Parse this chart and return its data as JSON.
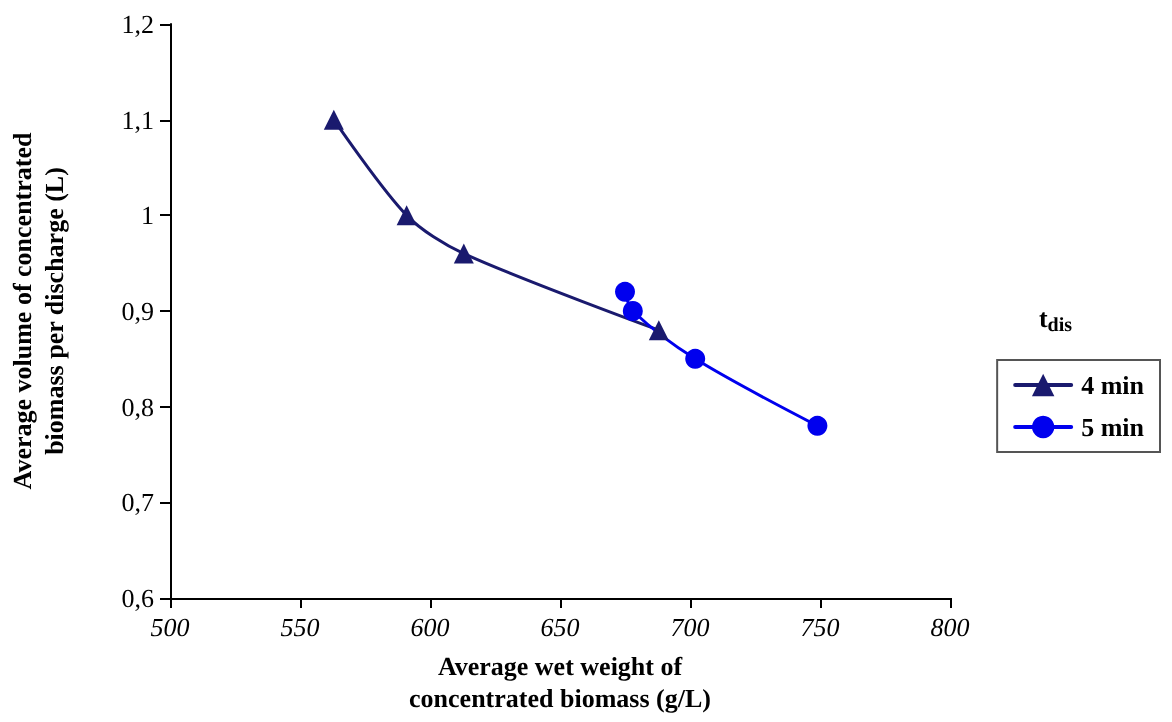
{
  "chart_data": {
    "type": "line",
    "xlabel": "Average wet weight of\nconcentrated biomass (g/L)",
    "ylabel": "Average volume of concentrated\nbiomass per discharge (L)",
    "legend_title": "t$_{dis}$",
    "series": [
      {
        "name": "4 min",
        "color": "#1a1a6e",
        "marker": "triangle",
        "x": [
          563,
          591,
          613,
          688
        ],
        "values": [
          1.1,
          1.0,
          0.96,
          0.88
        ]
      },
      {
        "name": "5 min",
        "color": "#0000ee",
        "marker": "circle",
        "x": [
          675,
          678,
          702,
          749
        ],
        "values": [
          0.92,
          0.9,
          0.85,
          0.78
        ]
      }
    ],
    "xlim": [
      500,
      800
    ],
    "xticks": [
      500,
      550,
      600,
      650,
      700,
      750,
      800
    ],
    "ylim": [
      0.6,
      1.2
    ],
    "yticks": [
      {
        "value": 0.6,
        "label": "0,6"
      },
      {
        "value": 0.7,
        "label": "0,7"
      },
      {
        "value": 0.8,
        "label": "0,8"
      },
      {
        "value": 0.9,
        "label": "0,9"
      },
      {
        "value": 1,
        "label": "1"
      },
      {
        "value": 1.1,
        "label": "1,1"
      },
      {
        "value": 1.2,
        "label": "1,2"
      }
    ],
    "grid": false,
    "legend": "right"
  }
}
